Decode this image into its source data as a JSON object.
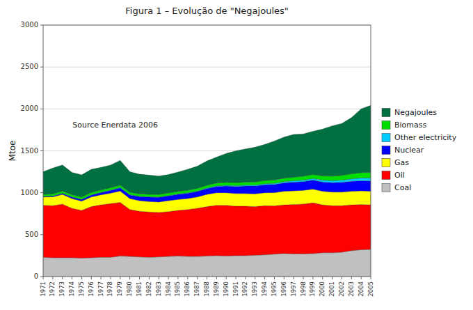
{
  "chart_data": {
    "type": "area",
    "stacked": true,
    "title": "Figura  1 – Evolução de \"Negajoules\"",
    "y_label": "Mtoe",
    "annotations": [
      "Source Enerdata 2006"
    ],
    "x": [
      1971,
      1972,
      1973,
      1974,
      1975,
      1976,
      1977,
      1978,
      1979,
      1980,
      1981,
      1982,
      1983,
      1984,
      1985,
      1986,
      1987,
      1988,
      1989,
      1990,
      1991,
      1992,
      1993,
      1994,
      1995,
      1996,
      1997,
      1998,
      1999,
      2000,
      2001,
      2002,
      2003,
      2004,
      2005
    ],
    "series": [
      {
        "name": "Coal",
        "color": "#c0c0c0",
        "values": [
          230,
          225,
          225,
          225,
          220,
          225,
          230,
          230,
          245,
          240,
          235,
          230,
          235,
          240,
          245,
          240,
          240,
          245,
          250,
          245,
          250,
          250,
          255,
          260,
          268,
          275,
          270,
          270,
          275,
          285,
          285,
          290,
          310,
          320,
          325
        ]
      },
      {
        "name": "Oil",
        "color": "#ff0000",
        "values": [
          620,
          620,
          640,
          590,
          570,
          610,
          625,
          640,
          640,
          560,
          545,
          540,
          530,
          535,
          545,
          560,
          575,
          590,
          600,
          605,
          590,
          590,
          580,
          585,
          575,
          580,
          590,
          595,
          605,
          570,
          560,
          555,
          545,
          540,
          530
        ]
      },
      {
        "name": "Gas",
        "color": "#ffff00",
        "values": [
          100,
          105,
          115,
          115,
          110,
          115,
          120,
          125,
          135,
          130,
          125,
          125,
          125,
          130,
          130,
          130,
          135,
          145,
          150,
          150,
          150,
          150,
          152,
          155,
          158,
          162,
          163,
          163,
          163,
          163,
          163,
          163,
          163,
          163,
          163
        ]
      },
      {
        "name": "Nuclear",
        "color": "#0000ff",
        "values": [
          5,
          8,
          12,
          17,
          18,
          23,
          27,
          32,
          38,
          43,
          48,
          53,
          55,
          57,
          60,
          63,
          65,
          70,
          75,
          80,
          85,
          90,
          93,
          95,
          97,
          100,
          103,
          105,
          107,
          110,
          112,
          115,
          118,
          120,
          122
        ]
      },
      {
        "name": "Other electricity",
        "color": "#00ccff",
        "values": [
          3,
          3,
          4,
          4,
          4,
          4,
          4,
          5,
          5,
          5,
          5,
          5,
          5,
          5,
          6,
          6,
          6,
          7,
          8,
          9,
          10,
          11,
          12,
          13,
          14,
          15,
          16,
          18,
          20,
          22,
          25,
          28,
          30,
          33,
          35
        ]
      },
      {
        "name": "Biomass",
        "color": "#00dd00",
        "values": [
          22,
          24,
          25,
          26,
          26,
          27,
          27,
          28,
          28,
          28,
          28,
          28,
          29,
          30,
          30,
          31,
          31,
          32,
          33,
          34,
          35,
          36,
          37,
          38,
          40,
          42,
          44,
          46,
          48,
          50,
          53,
          56,
          60,
          64,
          68
        ]
      },
      {
        "name": "Negajoules",
        "color": "#007040",
        "values": [
          270,
          310,
          310,
          265,
          265,
          275,
          270,
          270,
          295,
          245,
          235,
          230,
          220,
          220,
          230,
          250,
          265,
          290,
          310,
          345,
          380,
          395,
          415,
          430,
          465,
          490,
          510,
          505,
          515,
          560,
          600,
          620,
          670,
          760,
          800
        ]
      }
    ],
    "xlim": [
      1971,
      2005
    ],
    "xticks": [
      1971,
      1972,
      1973,
      1974,
      1975,
      1976,
      1977,
      1978,
      1979,
      1980,
      1981,
      1982,
      1983,
      1984,
      1985,
      1986,
      1987,
      1988,
      1989,
      1990,
      1991,
      1992,
      1993,
      1994,
      1995,
      1996,
      1997,
      1998,
      1999,
      2000,
      2001,
      2002,
      2003,
      2004,
      2005
    ],
    "ylim": [
      0,
      3000
    ],
    "yticks": [
      0,
      500,
      1000,
      1500,
      2000,
      2500,
      3000
    ],
    "grid": true,
    "legend": "right"
  }
}
